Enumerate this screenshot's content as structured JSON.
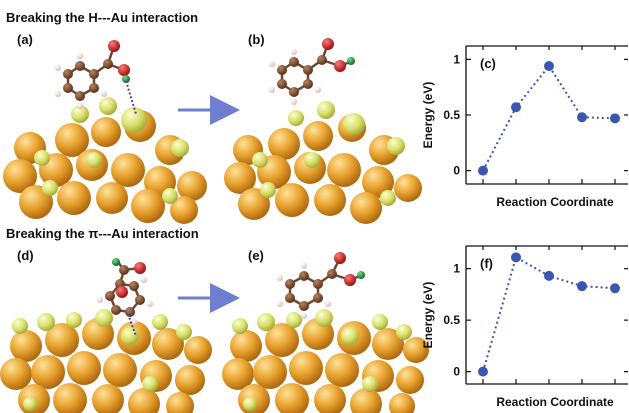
{
  "sections": [
    {
      "title": "Breaking the H---Au interaction"
    },
    {
      "title": "Breaking the π---Au interaction"
    }
  ],
  "panels": {
    "a": "(a)",
    "b": "(b)",
    "c": "(c)",
    "d": "(d)",
    "e": "(e)",
    "f": "(f)"
  },
  "colors": {
    "gold": "#e8a22e",
    "sulfur": "#d9df6a",
    "carbon": "#7a4a2c",
    "oxygen": "#d21f1f",
    "hydrogen_hl": "#1e8c3a",
    "arrow": "#6f7fcf",
    "points": "#3b56b0"
  },
  "chart_data": [
    {
      "type": "line",
      "panel": "(c)",
      "xlabel": "Reaction Coordinate",
      "ylabel": "Energy (eV)",
      "yticks": [
        "0",
        "0.5",
        "1"
      ],
      "ylim": [
        -0.12,
        1.12
      ],
      "series": [
        {
          "values": [
            0.0,
            0.57,
            0.94,
            0.48,
            0.47
          ]
        }
      ]
    },
    {
      "type": "line",
      "panel": "(f)",
      "xlabel": "Reaction Coordinate",
      "ylabel": "Energy (eV)",
      "yticks": [
        "0",
        "0.5",
        "1"
      ],
      "ylim": [
        -0.12,
        1.22
      ],
      "series": [
        {
          "values": [
            0.0,
            1.11,
            0.93,
            0.83,
            0.81
          ]
        }
      ]
    }
  ]
}
